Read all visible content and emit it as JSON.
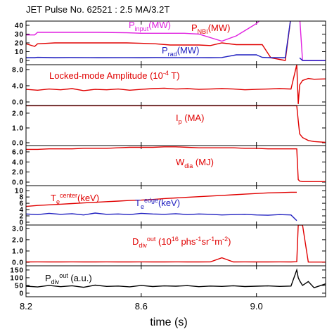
{
  "chart_data": [
    {
      "type": "line",
      "title": "JET Pulse No. 62521 : 2.5 MA/3.2T",
      "xlim": [
        8.2,
        9.24
      ],
      "ylim": [
        -4.8,
        44.8
      ],
      "yticks": [
        0,
        10,
        20,
        30,
        40
      ],
      "x": [
        8.2,
        8.23,
        8.24,
        8.3,
        8.35,
        8.45,
        8.55,
        8.6,
        8.65,
        8.7,
        8.75,
        8.8,
        8.84,
        8.88,
        8.93,
        8.97,
        9.0,
        9.02,
        9.05,
        9.1,
        9.12,
        9.14,
        9.15,
        9.16,
        9.2,
        9.24
      ],
      "series": [
        {
          "color": "#e020e0",
          "label": [
            {
              "text": "P"
            },
            {
              "text": "input",
              "shift": "sub"
            },
            {
              "text": "(MW)"
            }
          ],
          "values": [
            29,
            29,
            32,
            32,
            32,
            32,
            31.5,
            31,
            31,
            31,
            31,
            30,
            26,
            22,
            28,
            36,
            42,
            48,
            55,
            null,
            null,
            null,
            50,
            0,
            0,
            0
          ]
        },
        {
          "color": "#e00000",
          "label": [
            {
              "text": "P"
            },
            {
              "text": "NBI",
              "shift": "sub"
            },
            {
              "text": "(MW)"
            }
          ],
          "values": [
            19,
            16,
            19,
            20,
            20,
            20,
            20,
            19.5,
            19,
            17.6,
            17.6,
            17.6,
            17,
            20,
            18,
            18,
            18,
            18,
            3,
            0,
            50,
            null,
            null,
            null,
            null,
            null
          ]
        },
        {
          "color": "#2020c0",
          "label": [
            {
              "text": "P"
            },
            {
              "text": "rad",
              "shift": "sub"
            },
            {
              "text": "(MW)"
            }
          ],
          "values": [
            3.2,
            3.2,
            3.5,
            3.2,
            3.4,
            3.2,
            3.3,
            3.2,
            3.4,
            3.3,
            3.2,
            3.3,
            3.2,
            3.4,
            6.4,
            6.4,
            6.4,
            3.5,
            3.2,
            3.2,
            50,
            null,
            3,
            0,
            0,
            0
          ]
        }
      ]
    },
    {
      "type": "line",
      "xlim": [
        8.2,
        9.24
      ],
      "ylim": [
        -0.87,
        9.2
      ],
      "yticks": [
        {
          "value": 0,
          "label": "0.0"
        },
        {
          "value": 4,
          "label": "4.0"
        },
        {
          "value": 8,
          "label": "8.0"
        }
      ],
      "x": [
        8.2,
        8.24,
        8.28,
        8.32,
        8.36,
        8.4,
        8.44,
        8.48,
        8.52,
        8.56,
        8.6,
        8.64,
        8.68,
        8.72,
        8.76,
        8.8,
        8.84,
        8.88,
        8.92,
        8.96,
        9.0,
        9.04,
        9.08,
        9.12,
        9.14,
        9.145,
        9.15,
        9.16,
        9.18,
        9.2,
        9.24
      ],
      "series": [
        {
          "color": "#e00000",
          "label": [
            {
              "text": "Locked-mode Amplitude (10"
            },
            {
              "text": "-4",
              "shift": "sup"
            },
            {
              "text": " T)"
            }
          ],
          "values": [
            3.1,
            2.9,
            3.2,
            3.0,
            3.3,
            2.8,
            3.1,
            3.0,
            3.2,
            2.9,
            3.1,
            3.3,
            3.4,
            3.2,
            3.3,
            3.1,
            3.2,
            3.3,
            3.2,
            3.0,
            3.1,
            3.2,
            3.3,
            3.2,
            9.2,
            -0.5,
            4.2,
            5.3,
            5.8,
            5.6,
            5.7
          ]
        }
      ]
    },
    {
      "type": "line",
      "xlim": [
        8.2,
        9.24
      ],
      "ylim": [
        -0.19,
        2.52
      ],
      "yticks": [
        {
          "value": 0,
          "label": "0.0"
        },
        {
          "value": 1,
          "label": "1.0"
        },
        {
          "value": 2,
          "label": "2.0"
        }
      ],
      "x": [
        8.2,
        8.24,
        8.28,
        8.32,
        8.36,
        8.4,
        8.44,
        8.48,
        8.52,
        8.56,
        8.6,
        8.64,
        8.68,
        8.72,
        8.76,
        8.8,
        8.84,
        8.88,
        8.92,
        8.96,
        9.0,
        9.04,
        9.08,
        9.12,
        9.14,
        9.145,
        9.15,
        9.16,
        9.18,
        9.2,
        9.24
      ],
      "series": [
        {
          "color": "#e00000",
          "label": [
            {
              "text": "I"
            },
            {
              "text": "p",
              "shift": "sub"
            },
            {
              "text": " (MA)"
            }
          ],
          "values": [
            2.5,
            2.5,
            2.5,
            2.5,
            2.5,
            2.5,
            2.5,
            2.5,
            2.5,
            2.5,
            2.5,
            2.5,
            2.5,
            2.5,
            2.5,
            2.5,
            2.5,
            2.5,
            2.5,
            2.5,
            2.5,
            2.5,
            2.5,
            2.5,
            2.5,
            1.5,
            0.6,
            0.35,
            0.15,
            0.08,
            0.03
          ]
        }
      ]
    },
    {
      "type": "line",
      "xlim": [
        8.2,
        9.24
      ],
      "ylim": [
        -0.7,
        7.25
      ],
      "yticks": [
        {
          "value": 0,
          "label": "0.0"
        },
        {
          "value": 2,
          "label": "2.0"
        },
        {
          "value": 4,
          "label": "4.0"
        },
        {
          "value": 6,
          "label": "6.0"
        }
      ],
      "x": [
        8.2,
        8.24,
        8.28,
        8.32,
        8.36,
        8.4,
        8.44,
        8.48,
        8.52,
        8.56,
        8.6,
        8.64,
        8.68,
        8.72,
        8.76,
        8.8,
        8.84,
        8.88,
        8.92,
        8.96,
        9.0,
        9.04,
        9.08,
        9.12,
        9.14,
        9.145,
        9.15,
        9.16,
        9.18,
        9.2,
        9.24
      ],
      "series": [
        {
          "color": "#e00000",
          "label": [
            {
              "text": "W"
            },
            {
              "text": "dia",
              "shift": "sub"
            },
            {
              "text": " (MJ)"
            }
          ],
          "values": [
            6.5,
            6.5,
            6.6,
            6.6,
            6.6,
            6.7,
            6.7,
            6.7,
            6.8,
            6.9,
            6.9,
            6.9,
            7.0,
            7.0,
            6.9,
            6.8,
            6.8,
            6.8,
            6.8,
            6.7,
            6.7,
            6.6,
            6.6,
            6.6,
            6.6,
            0.5,
            0.2,
            0.1,
            0.1,
            0.1,
            0.1
          ]
        }
      ]
    },
    {
      "type": "line",
      "xlim": [
        8.2,
        9.24
      ],
      "ylim": [
        -0.9,
        11.6
      ],
      "yticks": [
        0,
        2,
        4,
        6,
        8,
        10
      ],
      "x": [
        8.2,
        8.24,
        8.28,
        8.32,
        8.36,
        8.4,
        8.44,
        8.48,
        8.52,
        8.56,
        8.6,
        8.64,
        8.68,
        8.72,
        8.76,
        8.8,
        8.84,
        8.88,
        8.92,
        8.96,
        9.0,
        9.04,
        9.08,
        9.12,
        9.14,
        9.145,
        9.15,
        9.16,
        9.18,
        9.2,
        9.24
      ],
      "series": [
        {
          "color": "#e00000",
          "label": [
            {
              "text": "T"
            },
            {
              "text": "e",
              "shift": "sub"
            },
            {
              "text": "center",
              "shift": "sup"
            },
            {
              "text": "(keV)"
            }
          ],
          "values": [
            5.0,
            5.3,
            5.5,
            5.7,
            5.9,
            6.1,
            6.3,
            6.5,
            6.7,
            6.9,
            7.0,
            7.2,
            7.5,
            7.7,
            7.9,
            8.1,
            8.3,
            8.5,
            8.7,
            8.9,
            9.1,
            9.3,
            9.4,
            9.5,
            9.5,
            null,
            null,
            null,
            null,
            null,
            null
          ]
        },
        {
          "color": "#2020c0",
          "label": [
            {
              "text": "T"
            },
            {
              "text": "e",
              "shift": "sub"
            },
            {
              "text": "edge",
              "shift": "sup"
            },
            {
              "text": "(keV)"
            }
          ],
          "values": [
            2.6,
            2.4,
            2.8,
            2.5,
            2.7,
            2.3,
            2.9,
            2.5,
            2.6,
            2.4,
            2.8,
            2.6,
            2.5,
            2.7,
            2.4,
            2.6,
            2.5,
            2.3,
            2.4,
            2.5,
            2.3,
            2.2,
            2.4,
            2.3,
            0.5,
            null,
            null,
            null,
            null,
            null,
            null
          ]
        }
      ]
    },
    {
      "type": "line",
      "xlim": [
        8.2,
        9.24
      ],
      "ylim": [
        -0.31,
        3.3
      ],
      "yticks": [
        {
          "value": 0,
          "label": "0.0"
        },
        {
          "value": 1,
          "label": "1.0"
        },
        {
          "value": 2,
          "label": "2.0"
        },
        {
          "value": 3,
          "label": "3.0"
        }
      ],
      "x": [
        8.2,
        8.24,
        8.28,
        8.32,
        8.36,
        8.4,
        8.44,
        8.48,
        8.52,
        8.56,
        8.6,
        8.64,
        8.68,
        8.72,
        8.76,
        8.8,
        8.84,
        8.88,
        8.92,
        8.96,
        9.0,
        9.04,
        9.08,
        9.12,
        9.14,
        9.145,
        9.15,
        9.16,
        9.18,
        9.2,
        9.24
      ],
      "series": [
        {
          "color": "#e00000",
          "label": [
            {
              "text": "D"
            },
            {
              "text": "div",
              "shift": "sub"
            },
            {
              "text": "out",
              "shift": "sup"
            },
            {
              "text": " (10"
            },
            {
              "text": "16",
              "shift": "sup"
            },
            {
              "text": " phs"
            },
            {
              "text": "-1",
              "shift": "sup"
            },
            {
              "text": "sr"
            },
            {
              "text": "-1",
              "shift": "sup"
            },
            {
              "text": "m"
            },
            {
              "text": "-2",
              "shift": "sup"
            },
            {
              "text": ")"
            }
          ],
          "values": [
            0.03,
            0.04,
            0.03,
            0.03,
            0.04,
            0.03,
            0.03,
            0.04,
            0.03,
            0.03,
            0.04,
            0.03,
            0.03,
            0.04,
            0.03,
            0.03,
            0.04,
            0.4,
            0.03,
            0.04,
            0.03,
            0.03,
            0.04,
            0.03,
            0.05,
            3.3,
            3.3,
            3.3,
            0.02,
            0.02,
            0.02
          ]
        }
      ]
    },
    {
      "type": "line",
      "xlim": [
        8.2,
        9.24
      ],
      "ylim": [
        -23,
        177
      ],
      "yticks": [
        0,
        50,
        100,
        150
      ],
      "xticks": [
        8.2,
        8.6,
        {
          "value": 9,
          "label": "9.0"
        }
      ],
      "xlabel": "time (s)",
      "x": [
        8.2,
        8.24,
        8.28,
        8.32,
        8.36,
        8.4,
        8.44,
        8.48,
        8.52,
        8.56,
        8.6,
        8.64,
        8.68,
        8.72,
        8.76,
        8.8,
        8.84,
        8.88,
        8.92,
        8.96,
        9.0,
        9.04,
        9.08,
        9.12,
        9.14,
        9.145,
        9.15,
        9.16,
        9.18,
        9.2,
        9.24
      ],
      "series": [
        {
          "color": "#000000",
          "label": [
            {
              "text": "P"
            },
            {
              "text": "div",
              "shift": "sub"
            },
            {
              "text": "out",
              "shift": "sup"
            },
            {
              "text": " (a.u.)"
            }
          ],
          "values": [
            45,
            40,
            50,
            42,
            48,
            38,
            52,
            44,
            46,
            41,
            50,
            43,
            47,
            45,
            49,
            42,
            46,
            44,
            48,
            43,
            45,
            47,
            44,
            46,
            150,
            100,
            80,
            50,
            75,
            35,
            60
          ]
        }
      ]
    }
  ]
}
